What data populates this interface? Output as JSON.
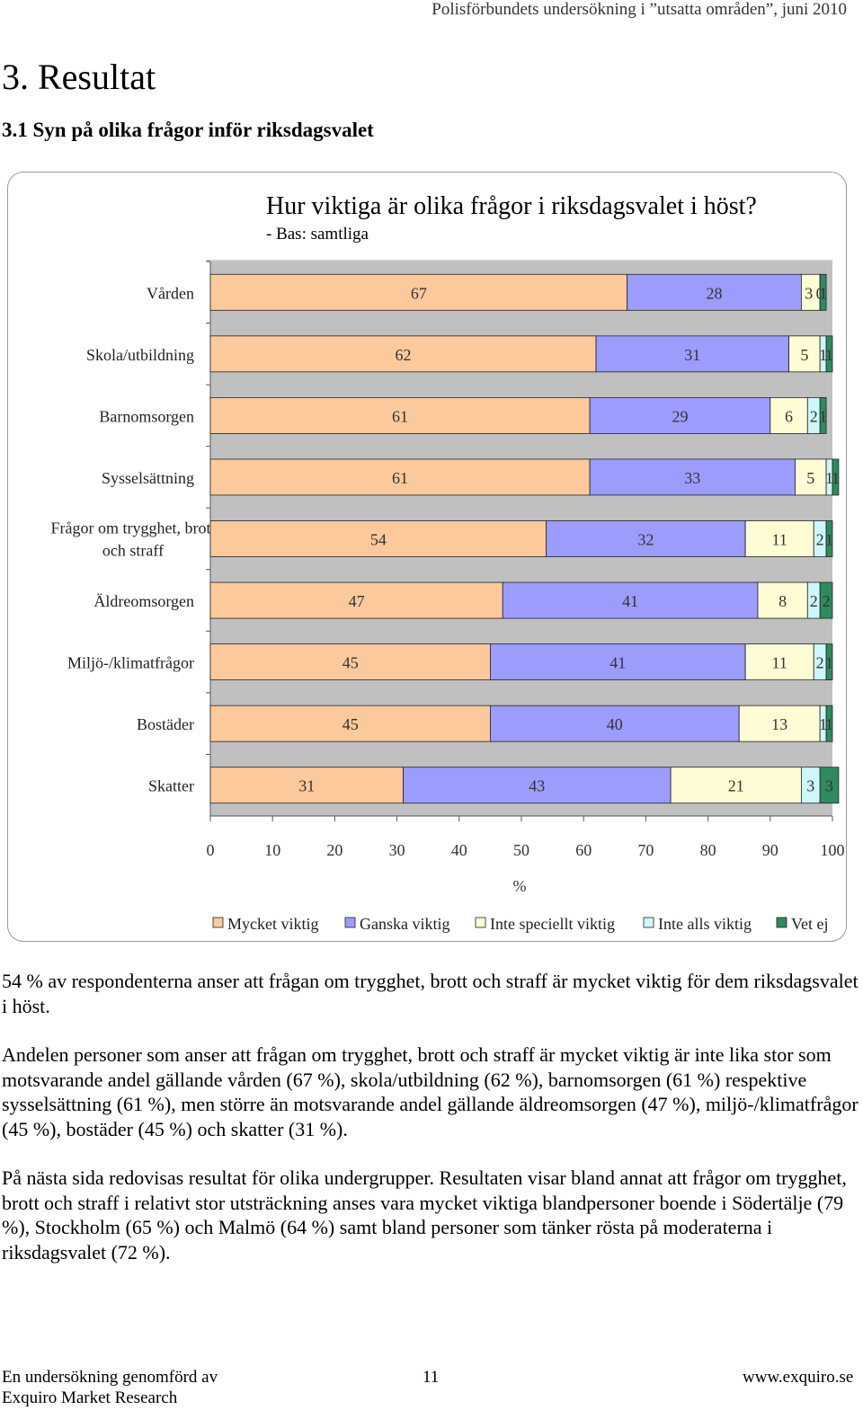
{
  "header": {
    "title": "Polisförbundets undersökning i ”utsatta områden”, juni 2010"
  },
  "section": {
    "title": "3. Resultat",
    "subtitle": "3.1 Syn på olika frågor inför riksdagsvalet"
  },
  "colors": {
    "mycket": "#fbc99c",
    "ganska": "#9c9cfc",
    "inte_speciellt": "#fdfcd4",
    "inte_alls": "#cdf7fa",
    "vet_ej": "#2f8a5f",
    "plot_bg": "#c0c0c0"
  },
  "chart_data": {
    "type": "bar",
    "orientation": "horizontal-stacked",
    "title": "Hur viktiga är olika frågor i riksdagsvalet i höst?",
    "subtitle": "- Bas: samtliga",
    "xlabel": "%",
    "xlim": [
      0,
      100
    ],
    "x_ticks": [
      "0",
      "10",
      "20",
      "30",
      "40",
      "50",
      "60",
      "70",
      "80",
      "90",
      "100"
    ],
    "categories": [
      [
        "Vården"
      ],
      [
        "Skola/utbildning"
      ],
      [
        "Barnomsorgen"
      ],
      [
        "Sysselsättning"
      ],
      [
        "Frågor om trygghet, brott",
        "och straff"
      ],
      [
        "Äldreomsorgen"
      ],
      [
        "Miljö-/klimatfrågor"
      ],
      [
        "Bostäder"
      ],
      [
        "Skatter"
      ]
    ],
    "series": [
      {
        "name": "Mycket viktig",
        "color_key": "mycket",
        "values": [
          67,
          62,
          61,
          61,
          54,
          47,
          45,
          45,
          31
        ]
      },
      {
        "name": "Ganska viktig",
        "color_key": "ganska",
        "values": [
          28,
          31,
          29,
          33,
          32,
          41,
          41,
          40,
          43
        ]
      },
      {
        "name": "Inte speciellt viktig",
        "color_key": "inte_speciellt",
        "values": [
          3,
          5,
          6,
          5,
          11,
          8,
          11,
          13,
          21
        ]
      },
      {
        "name": "Inte alls viktig",
        "color_key": "inte_alls",
        "values": [
          0,
          1,
          2,
          1,
          2,
          2,
          2,
          1,
          3
        ]
      },
      {
        "name": "Vet ej",
        "color_key": "vet_ej",
        "values": [
          1,
          1,
          1,
          1,
          1,
          2,
          1,
          1,
          3
        ]
      }
    ],
    "legend": [
      "Mycket viktig",
      "Ganska viktig",
      "Inte speciellt viktig",
      "Inte alls viktig",
      "Vet ej"
    ],
    "legend_position": "bottom"
  },
  "paragraphs": [
    "54 % av respondenterna anser att frågan om trygghet, brott och straff är mycket viktig för dem riksdagsvalet i höst.",
    "Andelen personer som anser att frågan om trygghet, brott och straff är mycket viktig är inte lika stor som motsvarande andel gällande vården (67 %), skola/utbildning (62 %), barnomsorgen (61 %) respektive sysselsättning (61 %), men större än motsvarande andel gällande äldreomsorgen (47 %), miljö-/klimatfrågor (45 %), bostäder (45 %) och skatter (31 %).",
    "På nästa sida redovisas resultat för olika undergrupper. Resultaten visar bland annat att frågor om trygghet, brott och straff i relativt stor utsträckning anses vara mycket viktiga blandpersoner boende i Södertälje (79 %), Stockholm (65 %) och Malmö (64 %) samt bland personer som tänker rösta på moderaterna i riksdagsvalet (72 %)."
  ],
  "footer": {
    "left_line1": "En undersökning genomförd av",
    "left_line2": "Exquiro Market Research",
    "page_number": "11",
    "url": "www.exquiro.se"
  }
}
